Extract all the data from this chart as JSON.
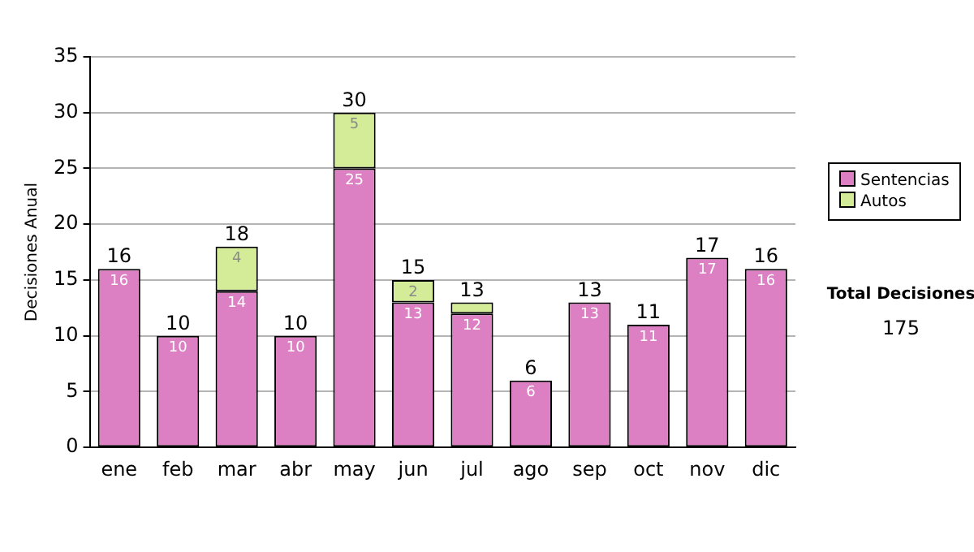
{
  "chart_data": {
    "type": "bar",
    "stacked": true,
    "ylabel": "Decisiones Anual",
    "categories": [
      "ene",
      "feb",
      "mar",
      "abr",
      "may",
      "jun",
      "jul",
      "ago",
      "sep",
      "oct",
      "nov",
      "dic"
    ],
    "series": [
      {
        "name": "Sentencias",
        "color": "#dd80c3",
        "values": [
          16,
          10,
          14,
          10,
          25,
          13,
          12,
          6,
          13,
          11,
          17,
          16
        ],
        "value_labels": [
          "16",
          "10",
          "14",
          "10",
          "25",
          "13",
          "12",
          "6",
          "13",
          "11",
          "17",
          "16"
        ]
      },
      {
        "name": "Autos",
        "color": "#d4ec98",
        "values": [
          0,
          0,
          4,
          0,
          5,
          2,
          1,
          0,
          0,
          0,
          0,
          0
        ],
        "value_labels": [
          null,
          null,
          "4",
          null,
          "5",
          "2",
          null,
          null,
          null,
          null,
          null,
          null
        ]
      }
    ],
    "totals": [
      "16",
      "10",
      "18",
      "10",
      "30",
      "15",
      "13",
      "6",
      "13",
      "11",
      "17",
      "16"
    ],
    "ylim": [
      0,
      35
    ],
    "yticks": [
      0,
      5,
      10,
      15,
      20,
      25,
      30,
      35
    ],
    "grid": "y",
    "legend": "right",
    "annotations": [
      "Total Decisiones",
      "175"
    ]
  }
}
